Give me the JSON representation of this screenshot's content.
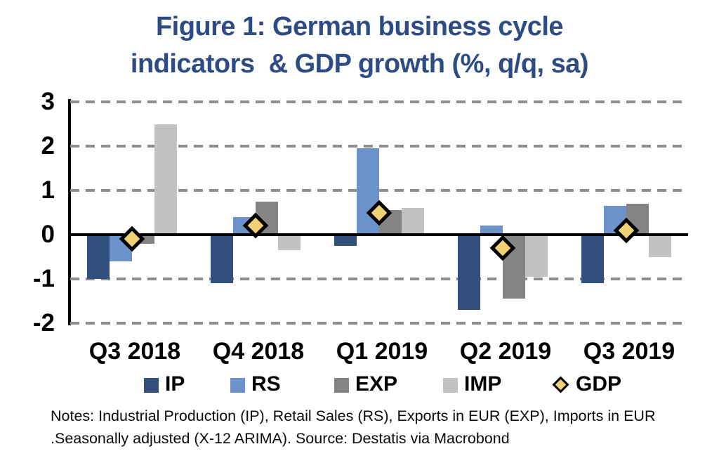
{
  "title": {
    "line1": "Figure 1: German business cycle",
    "line2": "indicators  & GDP growth (%, q/q, sa)"
  },
  "colors": {
    "title_navy": "#2d4b85",
    "axis_black": "#000000",
    "gridline_gray": "#8e8e8e",
    "bar_ip": "#31507e",
    "bar_rs": "#6d91c9",
    "bar_exp": "#848484",
    "bar_imp": "#c2c2c2",
    "gdp_fill": "#f0d173",
    "gdp_border": "#000000"
  },
  "chart_data": {
    "type": "bar",
    "title": "Figure 1: German business cycle indicators & GDP growth (%, q/q, sa)",
    "xlabel": "",
    "ylabel": "",
    "categories": [
      "Q3 2018",
      "Q4 2018",
      "Q1 2019",
      "Q2 2019",
      "Q3 2019"
    ],
    "series": [
      {
        "name": "IP",
        "render": "bar",
        "slot": 0,
        "color_key": "bar_ip",
        "values": [
          -1.0,
          -1.1,
          -0.25,
          -1.7,
          -1.1
        ]
      },
      {
        "name": "RS",
        "render": "bar",
        "slot": 1,
        "color_key": "bar_rs",
        "values": [
          -0.6,
          0.4,
          1.95,
          0.2,
          0.65
        ]
      },
      {
        "name": "EXP",
        "render": "bar",
        "slot": 2,
        "color_key": "bar_exp",
        "values": [
          -0.2,
          0.75,
          0.55,
          -1.45,
          0.7
        ]
      },
      {
        "name": "IMP",
        "render": "bar",
        "slot": 3,
        "color_key": "bar_imp",
        "values": [
          2.5,
          -0.35,
          0.6,
          -0.95,
          -0.5
        ]
      },
      {
        "name": "GDP",
        "render": "diamond",
        "color_key": "gdp_fill",
        "values": [
          -0.1,
          0.2,
          0.5,
          -0.3,
          0.1
        ]
      }
    ],
    "ylim": [
      -2,
      3
    ],
    "yticks": [
      3,
      2,
      1,
      0,
      -1,
      -2
    ],
    "grid": "horizontal-dashed (solid black line at 0)",
    "legend_position": "bottom"
  },
  "notes": {
    "line1": "Notes: Industrial Production (IP), Retail Sales (RS), Exports in EUR (EXP), Imports in EUR",
    "line2": ".Seasonally adjusted (X-12 ARIMA). Source: Destatis via Macrobond"
  }
}
